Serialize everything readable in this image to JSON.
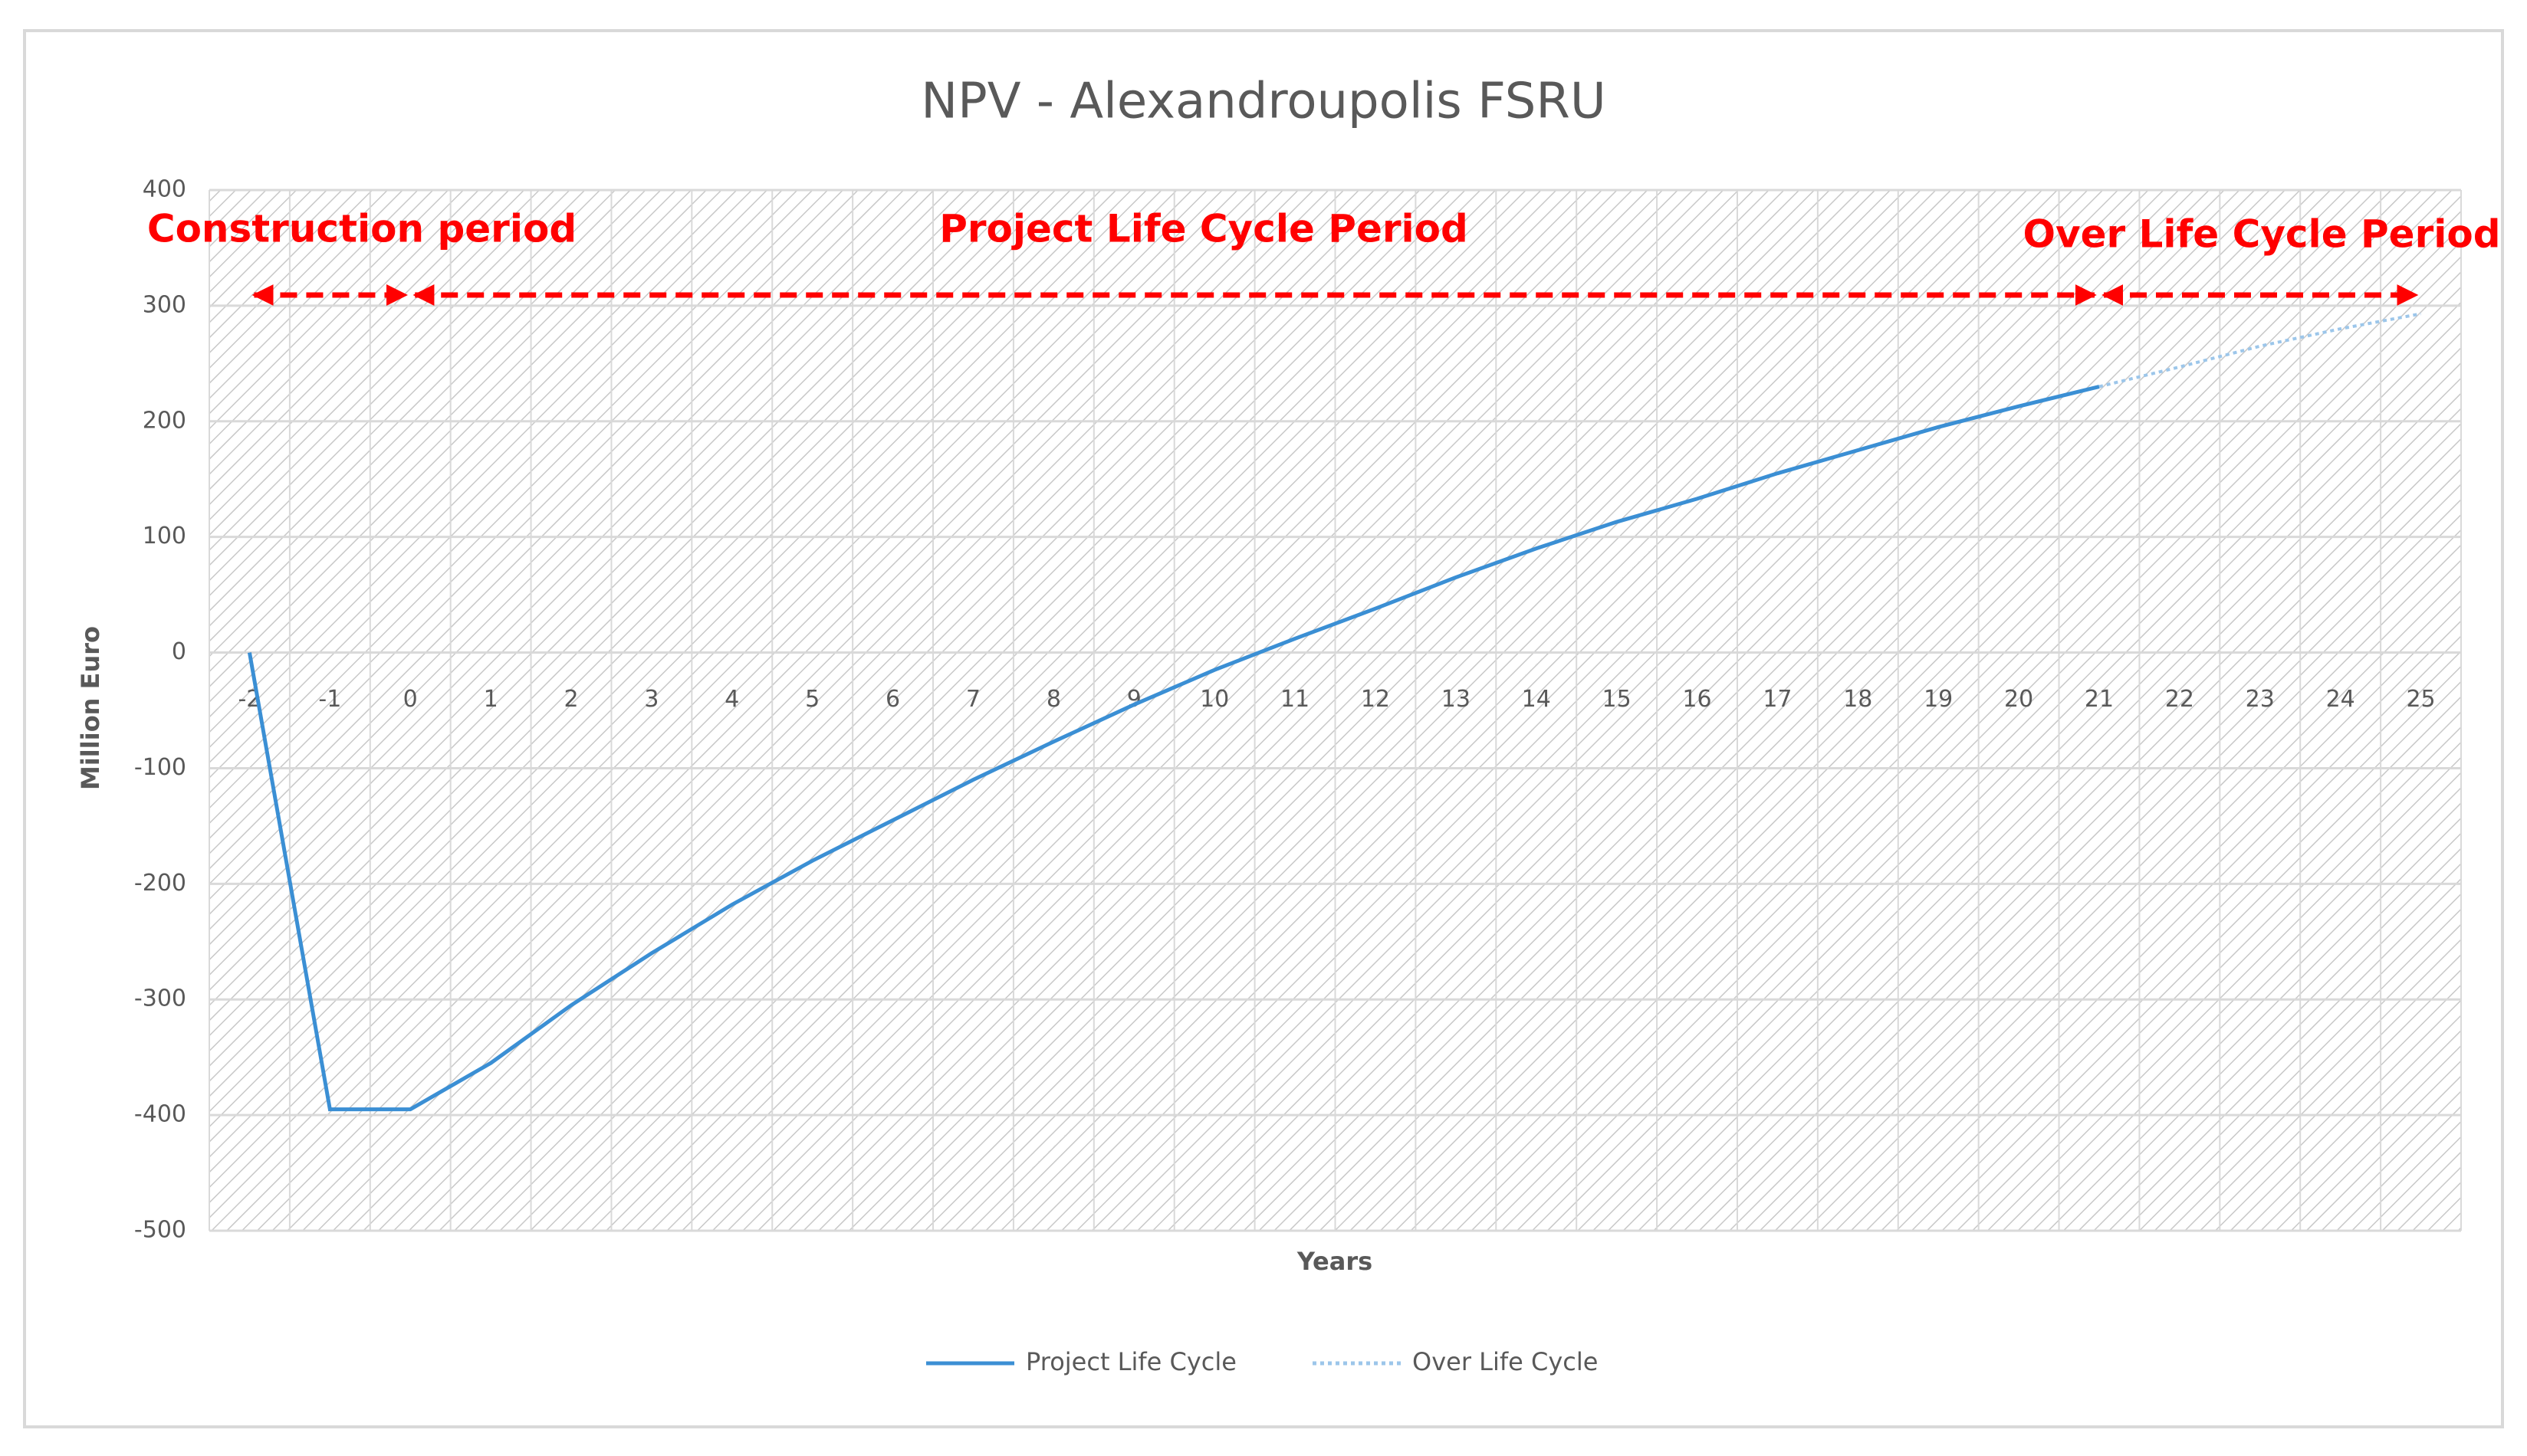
{
  "chart_data": {
    "type": "line",
    "title": "NPV - Alexandroupolis FSRU",
    "x_label": "Years",
    "y_label": "Million Euro",
    "categories": [
      "-2",
      "-1",
      "0",
      "1",
      "2",
      "3",
      "4",
      "5",
      "6",
      "7",
      "8",
      "9",
      "10",
      "11",
      "12",
      "13",
      "14",
      "15",
      "16",
      "17",
      "18",
      "19",
      "20",
      "21",
      "22",
      "23",
      "24",
      "25"
    ],
    "series": [
      {
        "name": "Project Life Cycle",
        "color": "#3b8fd4",
        "style": "solid",
        "values": [
          0,
          -395,
          -395,
          -355,
          -305,
          -260,
          -218,
          -180,
          -145,
          -110,
          -77,
          -45,
          -15,
          12,
          38,
          65,
          90,
          113,
          133,
          155,
          175,
          195,
          213,
          230,
          null,
          null,
          null,
          null
        ]
      },
      {
        "name": "Over Life Cycle",
        "color": "#9cc6ea",
        "style": "dotted",
        "values": [
          null,
          null,
          null,
          null,
          null,
          null,
          null,
          null,
          null,
          null,
          null,
          null,
          null,
          null,
          null,
          null,
          null,
          null,
          null,
          null,
          null,
          null,
          null,
          230,
          247,
          265,
          280,
          293
        ]
      }
    ],
    "annotations": [
      "Construction period",
      "Project Life Cycle Period",
      "Over Life Cycle Period"
    ],
    "ylim": [
      -500,
      400
    ],
    "yticks": [
      -500,
      -400,
      -300,
      -200,
      -100,
      0,
      100,
      200,
      300,
      400
    ],
    "grid": true,
    "legend": "bottom"
  }
}
